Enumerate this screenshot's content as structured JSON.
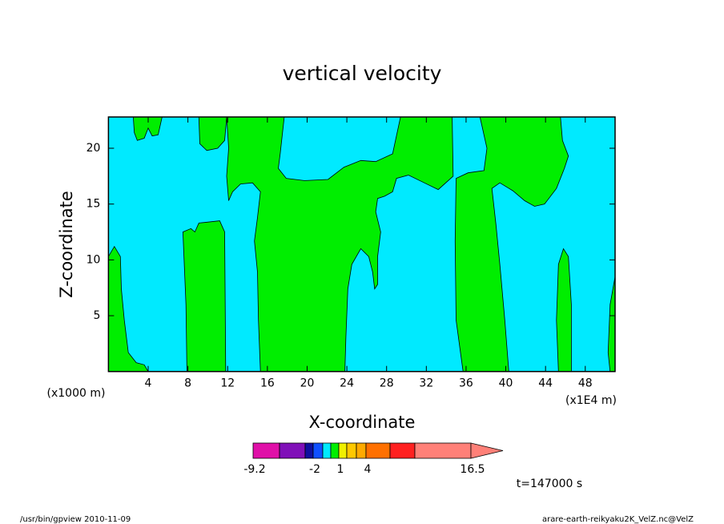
{
  "chart_data": {
    "type": "contour",
    "title": "vertical velocity",
    "x_label": "X-coordinate",
    "y_label": "Z-coordinate",
    "x_unit_left": "(x1000 m)",
    "x_unit_right": "(x1E4 m)",
    "annotation": "t=147000 s",
    "footer_left": "/usr/bin/gpview   2010-11-09",
    "footer_right": "arare-earth-reikyaku2K_VelZ.nc@VelZ",
    "xlim": [
      0,
      51
    ],
    "ylim": [
      0,
      22.8
    ],
    "xticks": [
      4,
      8,
      12,
      16,
      20,
      24,
      28,
      32,
      36,
      40,
      44,
      48
    ],
    "yticks": [
      5,
      10,
      15,
      20
    ],
    "background_level": 4,
    "colorbar": {
      "levels": [
        -9.2,
        -6,
        -3,
        -2,
        -1,
        0,
        1,
        2,
        3,
        4,
        8,
        12,
        16.5
      ],
      "colors": [
        "#e010a8",
        "#8010b8",
        "#1010a0",
        "#1050ff",
        "#00eaff",
        "#00ee00",
        "#f0f000",
        "#ffc800",
        "#ffaa00",
        "#ff7000",
        "#ff2020",
        "#ff8078"
      ],
      "ticks": [
        -9.2,
        -2,
        1,
        4,
        16.5
      ]
    },
    "regions": [
      {
        "level": 5,
        "x": [
          0,
          0,
          0.6,
          1.2,
          1.3,
          1.6,
          2.0,
          2.8,
          3.6,
          4.0
        ],
        "z": [
          0,
          10.3,
          11.2,
          10.3,
          7.4,
          4.6,
          1.7,
          0.8,
          0.6,
          0
        ]
      },
      {
        "level": 5,
        "x": [
          2.5,
          2.6,
          2.9,
          3.6,
          4.0,
          4.4,
          5.0,
          5.4
        ],
        "z": [
          22.8,
          21.4,
          20.7,
          20.9,
          21.8,
          21.1,
          21.2,
          22.8
        ]
      },
      {
        "level": 5,
        "x": [
          9.1,
          9.2,
          9.9,
          11.0,
          11.7,
          11.9
        ],
        "z": [
          22.8,
          20.4,
          19.8,
          20.0,
          20.7,
          22.8
        ]
      },
      {
        "level": 5,
        "x": [
          11.9,
          17.7,
          17.3,
          17.1,
          17.9,
          19.7,
          22.1,
          23.7,
          25.4,
          26.9,
          28.6,
          29.4,
          34.6,
          34.7,
          33.2,
          31.8,
          30.2,
          29.0,
          28.6,
          27.8,
          27.1,
          26.9,
          27.4,
          27.1,
          27.1,
          26.8,
          26.6,
          26.2,
          25.4,
          24.5,
          24.1,
          23.9,
          23.8,
          15.3,
          15.1,
          15.0,
          14.7,
          15.0,
          15.3,
          14.5,
          13.3,
          12.5,
          12.1,
          11.9,
          12.1
        ],
        "z": [
          22.8,
          22.8,
          19.6,
          18.2,
          17.3,
          17.1,
          17.2,
          18.3,
          18.9,
          18.8,
          19.5,
          22.8,
          22.8,
          17.5,
          16.3,
          16.9,
          17.6,
          17.3,
          16.1,
          15.7,
          15.5,
          14.3,
          12.5,
          10.3,
          7.8,
          7.4,
          8.9,
          10.3,
          11.0,
          9.6,
          7.4,
          3.1,
          0,
          0,
          4.6,
          8.9,
          11.7,
          13.8,
          16.1,
          16.9,
          16.8,
          16.1,
          15.3,
          17.5,
          20.0
        ]
      },
      {
        "level": 5,
        "x": [
          7.5,
          8.3,
          8.7,
          9.1,
          11.2,
          11.7,
          11.8,
          7.9,
          7.8
        ],
        "z": [
          12.5,
          12.8,
          12.5,
          13.3,
          13.5,
          12.5,
          0,
          0,
          6.0
        ]
      },
      {
        "level": 5,
        "x": [
          37.4,
          45.5,
          45.7,
          46.3,
          45.9,
          45.1,
          43.9,
          42.9,
          41.9,
          40.7,
          39.4,
          38.6,
          39.0,
          39.4,
          39.9,
          40.3,
          35.7,
          35.0,
          34.9,
          35.0,
          36.2,
          37.8,
          38.1
        ],
        "z": [
          22.8,
          22.8,
          20.7,
          19.3,
          18.2,
          16.4,
          15.0,
          14.8,
          15.3,
          16.2,
          16.9,
          16.4,
          13.2,
          9.6,
          4.6,
          0,
          0,
          4.6,
          11.7,
          17.3,
          17.8,
          18.0,
          20.0
        ]
      },
      {
        "level": 5,
        "x": [
          45.3,
          45.8,
          46.3,
          46.6,
          46.6,
          45.3,
          45.1
        ],
        "z": [
          9.6,
          11.0,
          10.3,
          6.0,
          0,
          0,
          4.6
        ]
      },
      {
        "level": 5,
        "x": [
          51,
          50.5,
          50.3,
          50.5,
          51
        ],
        "z": [
          8.5,
          6.0,
          1.7,
          0,
          0
        ]
      }
    ]
  }
}
